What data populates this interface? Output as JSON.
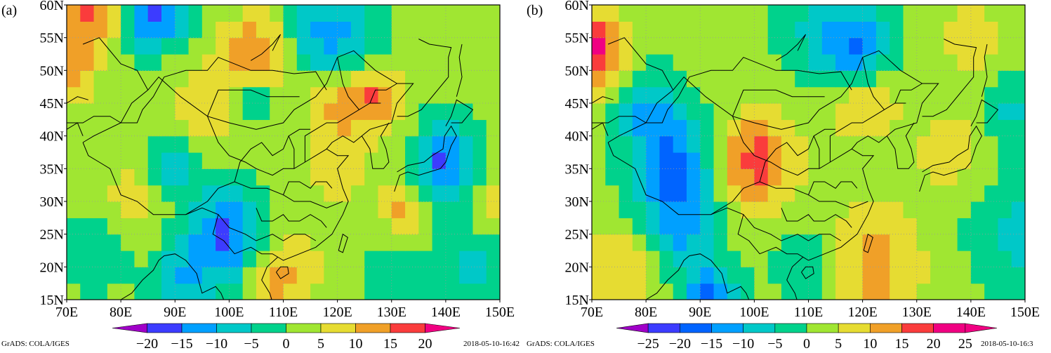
{
  "panels": [
    {
      "id": "a",
      "label": "(a)",
      "chart_type": "heatmap",
      "x_ticks": [
        "70E",
        "80E",
        "90E",
        "100E",
        "110E",
        "120E",
        "130E",
        "140E",
        "150E"
      ],
      "y_ticks": [
        "15N",
        "20N",
        "25N",
        "30N",
        "35N",
        "40N",
        "45N",
        "50N",
        "55N",
        "60N"
      ],
      "colorbar_labels": [
        "−20",
        "−15",
        "−10",
        "−5",
        "0",
        "5",
        "10",
        "15",
        "20"
      ],
      "colorbar_colors": [
        "#a000c8",
        "#3c3cff",
        "#00a0ff",
        "#00c8c8",
        "#00d28c",
        "#a0e632",
        "#e6dc32",
        "#f0a028",
        "#fa3c3c",
        "#f00082"
      ],
      "footer_left": "GrADS: COLA/IGES",
      "footer_right": "2018-05-10-16:42"
    },
    {
      "id": "b",
      "label": "(b)",
      "chart_type": "heatmap",
      "x_ticks": [
        "70E",
        "80E",
        "90E",
        "100E",
        "110E",
        "120E",
        "130E",
        "140E",
        "150E"
      ],
      "y_ticks": [
        "15N",
        "20N",
        "25N",
        "30N",
        "35N",
        "40N",
        "45N",
        "50N",
        "55N",
        "60N"
      ],
      "colorbar_labels": [
        "−25",
        "−20",
        "−15",
        "−10",
        "−5",
        "0",
        "5",
        "10",
        "15",
        "20",
        "25"
      ],
      "colorbar_colors": [
        "#a000c8",
        "#3c3cff",
        "#0064ff",
        "#00a0ff",
        "#00c8c8",
        "#00d28c",
        "#a0e632",
        "#e6dc32",
        "#f0a028",
        "#fa3c3c",
        "#f00082",
        "#f00082"
      ],
      "footer_left": "GrADS: COLA/IGES",
      "footer_right": "2018-05-10-16:3"
    }
  ],
  "chart_data": [
    {
      "type": "heatmap",
      "title": "(a)",
      "x_range": [
        70,
        150
      ],
      "y_range": [
        15,
        60
      ],
      "x_ticks": [
        "70E",
        "80E",
        "90E",
        "100E",
        "110E",
        "120E",
        "130E",
        "140E",
        "150E"
      ],
      "y_ticks": [
        "15N",
        "20N",
        "25N",
        "30N",
        "35N",
        "40N",
        "45N",
        "50N",
        "55N",
        "60N"
      ],
      "levels": [
        -20,
        -15,
        -10,
        -5,
        0,
        5,
        10,
        15,
        20
      ],
      "grid": "dotted",
      "background_value": 2,
      "blobs": [
        {
          "lon": 75,
          "lat": 60,
          "value": 17,
          "r": 6
        },
        {
          "lon": 86,
          "lat": 59,
          "value": -18,
          "r": 6
        },
        {
          "lon": 119,
          "lat": 55,
          "value": -13,
          "r": 8
        },
        {
          "lon": 105,
          "lat": 52,
          "value": 17,
          "r": 6
        },
        {
          "lon": 70,
          "lat": 50,
          "value": 14,
          "r": 5
        },
        {
          "lon": 121,
          "lat": 46,
          "value": 13,
          "r": 6
        },
        {
          "lon": 128,
          "lat": 46,
          "value": 13,
          "r": 4
        },
        {
          "lon": 104,
          "lat": 46,
          "value": -10,
          "r": 4
        },
        {
          "lon": 95,
          "lat": 43,
          "value": 8,
          "r": 8
        },
        {
          "lon": 140,
          "lat": 36,
          "value": -16,
          "r": 6
        },
        {
          "lon": 90,
          "lat": 36,
          "value": -11,
          "r": 5
        },
        {
          "lon": 100,
          "lat": 24,
          "value": -18,
          "r": 8
        },
        {
          "lon": 108,
          "lat": 19,
          "value": 15,
          "r": 7
        },
        {
          "lon": 82,
          "lat": 30,
          "value": 8,
          "r": 6
        },
        {
          "lon": 132,
          "lat": 28,
          "value": 12,
          "r": 4
        },
        {
          "lon": 75,
          "lat": 22,
          "value": -5,
          "r": 6
        },
        {
          "lon": 120,
          "lat": 36,
          "value": 6,
          "r": 10
        },
        {
          "lon": 150,
          "lat": 30,
          "value": 8,
          "r": 6
        },
        {
          "lon": 90,
          "lat": 18,
          "value": -8,
          "r": 5
        },
        {
          "lon": 145,
          "lat": 20,
          "value": -6,
          "r": 7
        },
        {
          "lon": 130,
          "lat": 20,
          "value": -4,
          "r": 6
        }
      ]
    },
    {
      "type": "heatmap",
      "title": "(b)",
      "x_range": [
        70,
        150
      ],
      "y_range": [
        15,
        60
      ],
      "x_ticks": [
        "70E",
        "80E",
        "90E",
        "100E",
        "110E",
        "120E",
        "130E",
        "140E",
        "150E"
      ],
      "y_ticks": [
        "15N",
        "20N",
        "25N",
        "30N",
        "35N",
        "40N",
        "45N",
        "50N",
        "55N",
        "60N"
      ],
      "levels": [
        -25,
        -20,
        -15,
        -10,
        -5,
        0,
        5,
        10,
        15,
        20,
        25
      ],
      "grid": "dotted",
      "background_value": 2,
      "blobs": [
        {
          "lon": 70,
          "lat": 53,
          "value": 22,
          "r": 6
        },
        {
          "lon": 119,
          "lat": 53,
          "value": -20,
          "r": 7
        },
        {
          "lon": 120,
          "lat": 47,
          "value": 15,
          "r": 7
        },
        {
          "lon": 100,
          "lat": 36,
          "value": 18,
          "r": 7
        },
        {
          "lon": 85,
          "lat": 35,
          "value": -17,
          "r": 8
        },
        {
          "lon": 87,
          "lat": 25,
          "value": -8,
          "r": 6
        },
        {
          "lon": 92,
          "lat": 15,
          "value": -18,
          "r": 5
        },
        {
          "lon": 122,
          "lat": 20,
          "value": 12,
          "r": 9
        },
        {
          "lon": 136,
          "lat": 38,
          "value": 8,
          "r": 6
        },
        {
          "lon": 140,
          "lat": 55,
          "value": 8,
          "r": 6
        },
        {
          "lon": 80,
          "lat": 45,
          "value": -8,
          "r": 6
        },
        {
          "lon": 148,
          "lat": 44,
          "value": -6,
          "r": 6
        },
        {
          "lon": 75,
          "lat": 20,
          "value": 10,
          "r": 6
        },
        {
          "lon": 110,
          "lat": 57,
          "value": -4,
          "r": 7
        },
        {
          "lon": 148,
          "lat": 25,
          "value": -7,
          "r": 8
        },
        {
          "lon": 110,
          "lat": 20,
          "value": -6,
          "r": 6
        }
      ]
    }
  ]
}
